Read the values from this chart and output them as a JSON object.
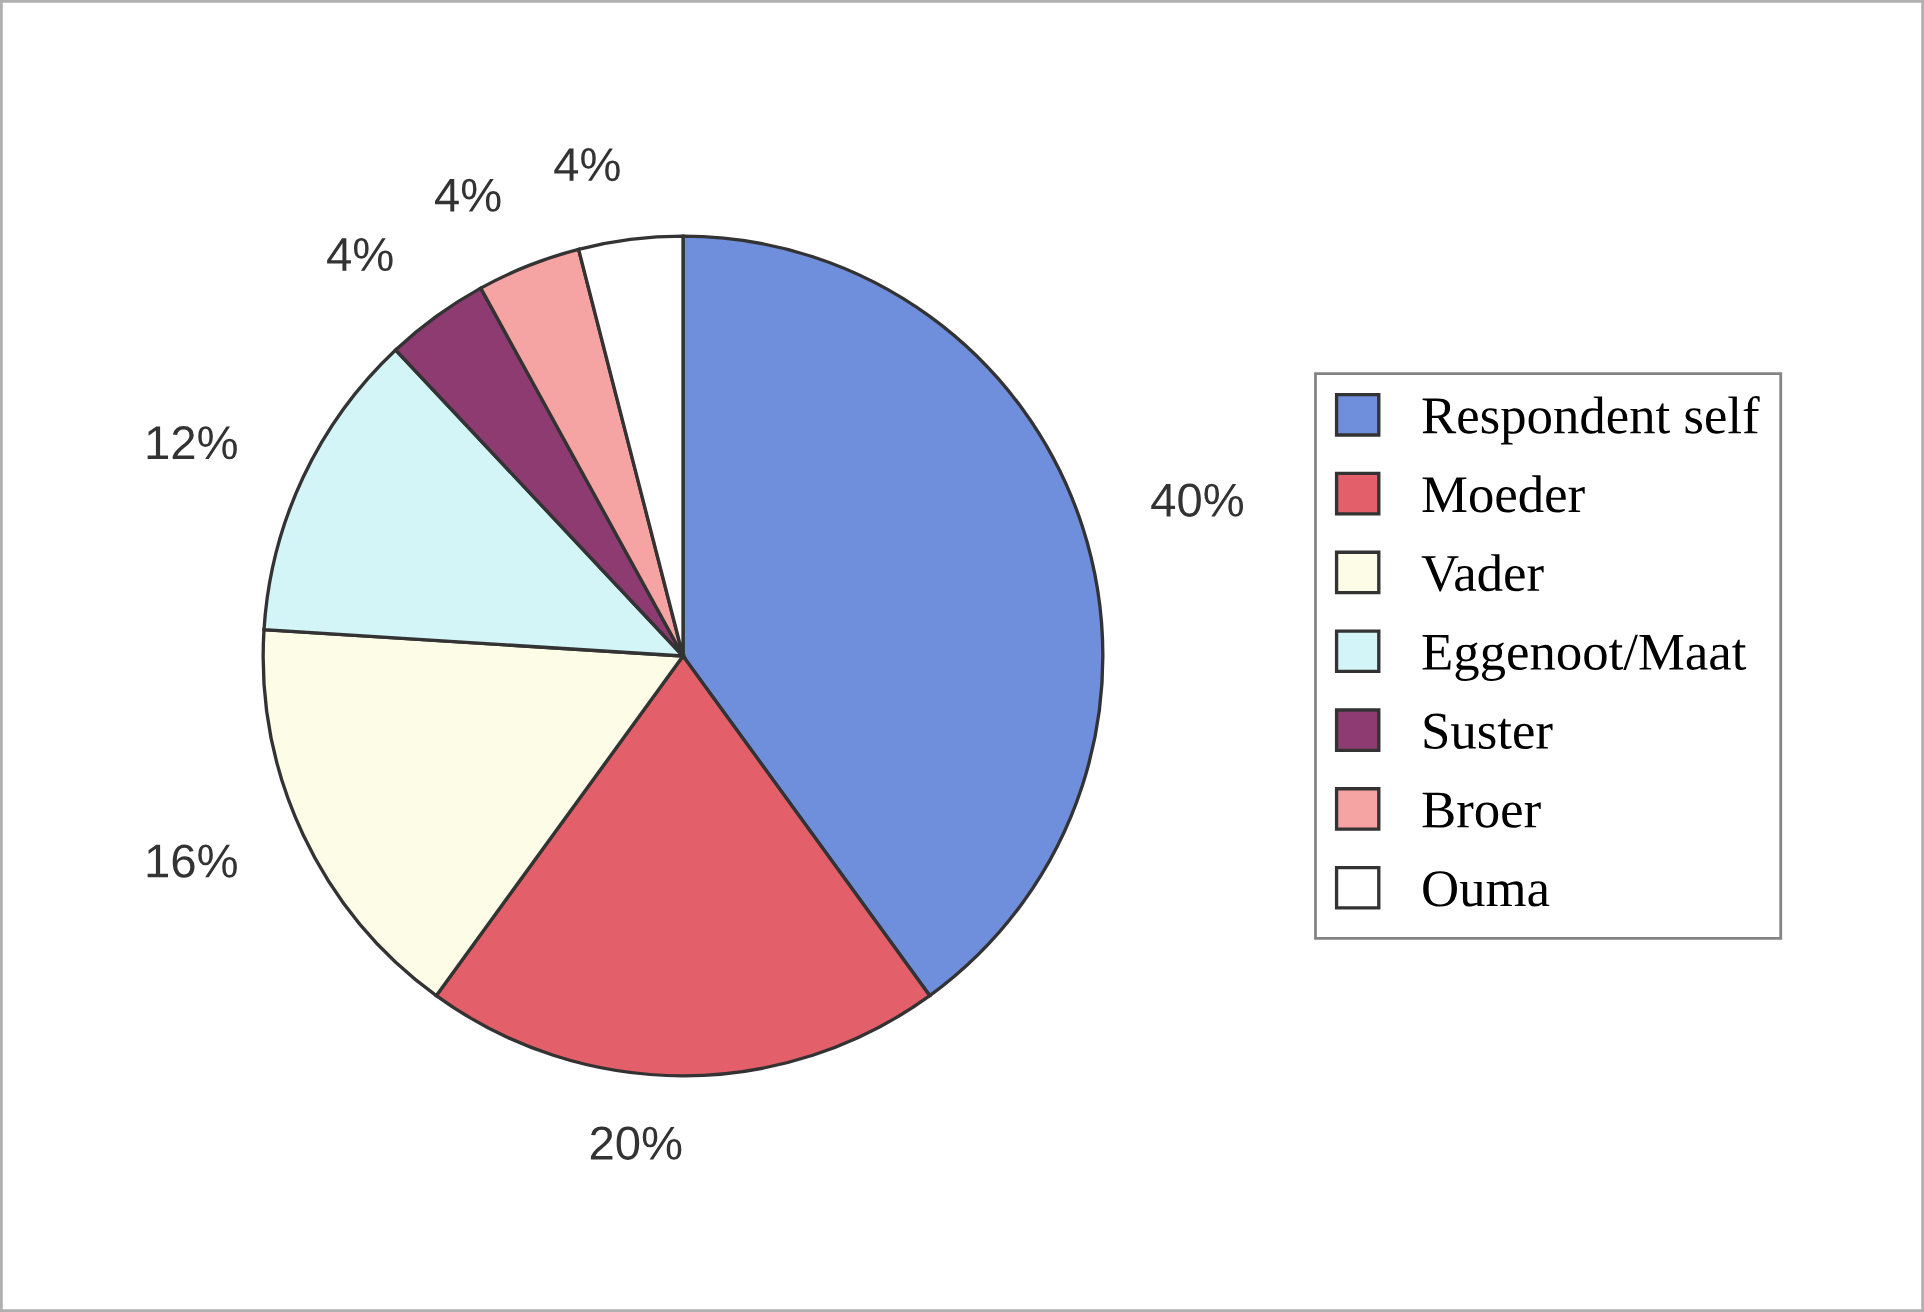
{
  "chart_data": {
    "type": "pie",
    "categories": [
      "Respondent self",
      "Moeder",
      "Vader",
      "Eggenoot/Maat",
      "Suster",
      "Broer",
      "Ouma"
    ],
    "values": [
      40,
      20,
      16,
      12,
      4,
      4,
      4
    ],
    "value_labels": [
      "40%",
      "20%",
      "16%",
      "12%",
      "4%",
      "4%",
      "4%"
    ],
    "colors": [
      "#6f8fdc",
      "#e3606a",
      "#fdfce6",
      "#d4f5f8",
      "#8e3b72",
      "#f5a3a3",
      "#ffffff"
    ],
    "legend": "right"
  }
}
